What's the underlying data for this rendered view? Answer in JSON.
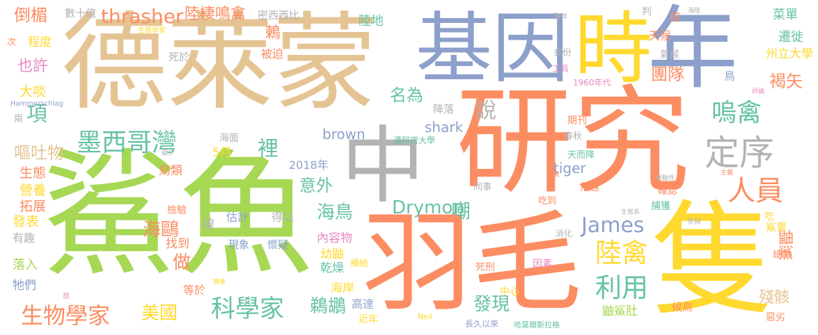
{
  "palette": {
    "tan": "#e5c494",
    "green": "#a6d854",
    "orange": "#fc8d62",
    "blue": "#8da0cb",
    "yellow": "#ffd92f",
    "gray": "#b3b3b3",
    "teal": "#66c2a5",
    "pink": "#e78ac3"
  },
  "words": [
    {
      "text": "德萊蒙",
      "color": "tan"
    },
    {
      "text": "鯊魚",
      "color": "green"
    },
    {
      "text": "研究",
      "color": "orange"
    },
    {
      "text": "羽毛",
      "color": "orange"
    },
    {
      "text": "隻",
      "color": "yellow"
    },
    {
      "text": "基因",
      "color": "blue"
    },
    {
      "text": "時",
      "color": "yellow"
    },
    {
      "text": "年",
      "color": "blue"
    },
    {
      "text": "中",
      "color": "gray"
    },
    {
      "text": "墨西哥灣",
      "color": "teal"
    },
    {
      "text": "定序",
      "color": "gray"
    },
    {
      "text": "科學家",
      "color": "teal"
    },
    {
      "text": "生物學家",
      "color": "orange"
    },
    {
      "text": "嗚禽",
      "color": "teal"
    },
    {
      "text": "陸禽",
      "color": "yellow"
    },
    {
      "text": "利用",
      "color": "teal"
    },
    {
      "text": "人員",
      "color": "orange"
    },
    {
      "text": "thrasher",
      "color": "orange"
    },
    {
      "text": "James",
      "color": "blue"
    },
    {
      "text": "Drymon",
      "color": "teal"
    },
    {
      "text": "海鳥",
      "color": "teal"
    },
    {
      "text": "海鷗",
      "color": "orange"
    },
    {
      "text": "鵜鶘",
      "color": "teal"
    },
    {
      "text": "發現",
      "color": "teal"
    },
    {
      "text": "美國",
      "color": "yellow"
    },
    {
      "text": "倒楣",
      "color": "orange"
    },
    {
      "text": "陸棲鳴禽",
      "color": "orange"
    },
    {
      "text": "團隊",
      "color": "orange"
    },
    {
      "text": "褐矢",
      "color": "orange"
    },
    {
      "text": "意外",
      "color": "teal"
    },
    {
      "text": "名為",
      "color": "teal"
    },
    {
      "text": "嘔吐物",
      "color": "tan"
    },
    {
      "text": "說",
      "color": "gray"
    },
    {
      "text": "項",
      "color": "teal"
    },
    {
      "text": "也許",
      "color": "pink"
    },
    {
      "text": "裡",
      "color": "teal"
    },
    {
      "text": "做",
      "color": "orange"
    },
    {
      "text": "嘲",
      "color": "teal"
    },
    {
      "text": "鼬鯊",
      "color": "orange"
    },
    {
      "text": "殘骸",
      "color": "tan"
    },
    {
      "text": "tiger",
      "color": "blue"
    },
    {
      "text": "brown",
      "color": "blue"
    },
    {
      "text": "shark",
      "color": "blue"
    },
    {
      "text": "菜單",
      "color": "teal"
    },
    {
      "text": "遷徙",
      "color": "teal"
    },
    {
      "text": "州立大學",
      "color": "yellow"
    },
    {
      "text": "數十億",
      "color": "gray"
    },
    {
      "text": "密西西比",
      "color": "gray"
    },
    {
      "text": "鶇",
      "color": "orange"
    },
    {
      "text": "陸地",
      "color": "teal"
    },
    {
      "text": "程度",
      "color": "yellow"
    },
    {
      "text": "次",
      "color": "orange"
    },
    {
      "text": "大啖",
      "color": "yellow"
    },
    {
      "text": "生態學家",
      "color": "yellow"
    },
    {
      "text": "生態",
      "color": "orange"
    },
    {
      "text": "營養",
      "color": "yellow"
    },
    {
      "text": "拓展",
      "color": "orange"
    },
    {
      "text": "發表",
      "color": "yellow"
    },
    {
      "text": "有趣",
      "color": "gray"
    },
    {
      "text": "落入",
      "color": "green"
    },
    {
      "text": "牠們",
      "color": "blue"
    },
    {
      "text": "兩",
      "color": "gray"
    },
    {
      "text": "Hammerschlag",
      "color": "blue"
    },
    {
      "text": "5月",
      "color": "yellow"
    },
    {
      "text": "2018年",
      "color": "blue"
    },
    {
      "text": "海面",
      "color": "gray"
    },
    {
      "text": "鳥類",
      "color": "orange"
    },
    {
      "text": "顯示",
      "color": "gray"
    },
    {
      "text": "檢驗",
      "color": "orange"
    },
    {
      "text": "線",
      "color": "gray"
    },
    {
      "text": "估計",
      "color": "blue"
    },
    {
      "text": "得以",
      "color": "gray"
    },
    {
      "text": "現象",
      "color": "blue"
    },
    {
      "text": "懷疑",
      "color": "blue"
    },
    {
      "text": "找到",
      "color": "orange"
    },
    {
      "text": "死於",
      "color": "gray"
    },
    {
      "text": "被迫",
      "color": "orange"
    },
    {
      "text": "降落",
      "color": "gray"
    },
    {
      "text": "邁阿密大學",
      "color": "teal"
    },
    {
      "text": "內容物",
      "color": "pink"
    },
    {
      "text": "幼鼬",
      "color": "yellow"
    },
    {
      "text": "乾燥",
      "color": "teal"
    },
    {
      "text": "補給",
      "color": "yellow"
    },
    {
      "text": "海岸",
      "color": "yellow"
    },
    {
      "text": "高達",
      "color": "blue"
    },
    {
      "text": "近年",
      "color": "yellow"
    },
    {
      "text": "等於",
      "color": "orange"
    },
    {
      "text": "機會",
      "color": "yellow"
    },
    {
      "text": "放",
      "color": "pink"
    },
    {
      "text": "Neil",
      "color": "yellow"
    },
    {
      "text": "長久以來",
      "color": "blue"
    },
    {
      "text": "哈莫爾斯拉格",
      "color": "teal"
    },
    {
      "text": "中心",
      "color": "yellow"
    },
    {
      "text": "因素",
      "color": "pink"
    },
    {
      "text": "死刑",
      "color": "orange"
    },
    {
      "text": "同事",
      "color": "gray"
    },
    {
      "text": "消化",
      "color": "gray"
    },
    {
      "text": "天而降",
      "color": "teal"
    },
    {
      "text": "期刊",
      "color": "orange"
    },
    {
      "text": "春秋",
      "color": "gray"
    },
    {
      "text": "未",
      "color": "orange"
    },
    {
      "text": "吃到",
      "color": "orange"
    },
    {
      "text": "飛越",
      "color": "orange"
    },
    {
      "text": "捕獲",
      "color": "teal"
    },
    {
      "text": "確認",
      "color": "orange"
    },
    {
      "text": "關聯性",
      "color": "gray"
    },
    {
      "text": "主義",
      "color": "orange"
    },
    {
      "text": "生態系",
      "color": "gray"
    },
    {
      "text": "參與",
      "color": "gray"
    },
    {
      "text": "吃",
      "color": "yellow"
    },
    {
      "text": "鯊胃",
      "color": "yellow"
    },
    {
      "text": "鼬鯊肚",
      "color": "green"
    },
    {
      "text": "候鳥",
      "color": "orange"
    },
    {
      "text": "總共",
      "color": "orange"
    },
    {
      "text": "惡劣",
      "color": "orange"
    },
    {
      "text": "1960年代",
      "color": "pink"
    },
    {
      "text": "工具",
      "color": "pink"
    },
    {
      "text": "充份",
      "color": "gray"
    },
    {
      "text": "海洋",
      "color": "gray"
    },
    {
      "text": "判",
      "color": "gray"
    },
    {
      "text": "前",
      "color": "orange"
    },
    {
      "text": "天候",
      "color": "orange"
    },
    {
      "text": "氣候",
      "color": "gray"
    },
    {
      "text": "海陸",
      "color": "gray"
    },
    {
      "text": "鳥",
      "color": "blue"
    },
    {
      "text": "評論",
      "color": "pink"
    }
  ]
}
